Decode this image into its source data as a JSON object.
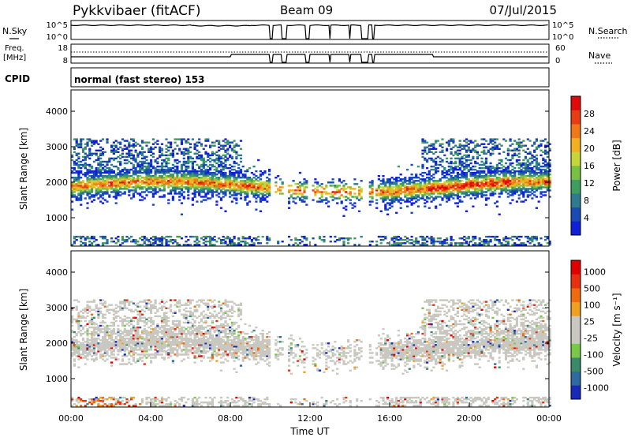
{
  "header": {
    "station": "Pykkvibaer (fitACF)",
    "beam": "Beam 09",
    "date": "07/Jul/2015"
  },
  "noise_panel": {
    "left_label": "N.Sky",
    "right_label": "N.Search",
    "left_ticks": [
      "10^5",
      "10^0"
    ],
    "right_ticks": [
      "10^5",
      "10^0"
    ]
  },
  "freq_panel": {
    "left_label": "Freq.",
    "left_unit": "[MHz]",
    "right_label": "Nave",
    "left_ticks": [
      "18",
      "8"
    ],
    "right_ticks": [
      "60",
      "0"
    ]
  },
  "cpid": {
    "label": "CPID",
    "mode": "normal (fast stereo) 153"
  },
  "chart_data": [
    {
      "type": "heatmap",
      "name": "power",
      "ylabel": "Slant Range [km]",
      "yticks": [
        "1000",
        "2000",
        "3000",
        "4000"
      ],
      "ylim": [
        200,
        4600
      ],
      "xlim": [
        0,
        24
      ],
      "colorbar": {
        "label": "Power [dB]",
        "ticks": [
          "4",
          "8",
          "12",
          "16",
          "20",
          "24",
          "28"
        ],
        "colors": [
          "#1020d8",
          "#1a4ab4",
          "#2d7b8c",
          "#3e9e5e",
          "#78c043",
          "#c4d63a",
          "#f0b020",
          "#f07818",
          "#e83c14",
          "#e00a0a"
        ]
      }
    },
    {
      "type": "heatmap",
      "name": "velocity",
      "ylabel": "Slant Range [km]",
      "yticks": [
        "1000",
        "2000",
        "3000",
        "4000"
      ],
      "ylim": [
        200,
        4600
      ],
      "xlim": [
        0,
        24
      ],
      "xlabel": "Time UT",
      "xticks": [
        "00:00",
        "04:00",
        "08:00",
        "12:00",
        "16:00",
        "20:00",
        "00:00"
      ],
      "colorbar": {
        "label": "Velocity [m s⁻¹]",
        "ticks": [
          "1000",
          "500",
          "100",
          "25",
          "-25",
          "-100",
          "-500",
          "-1000"
        ],
        "colors": [
          "#1a2ab8",
          "#2d6aa0",
          "#3a8a6a",
          "#7ac84a",
          "#c8c8c0",
          "#c8c8c0",
          "#f0a020",
          "#f06a10",
          "#e83010",
          "#e00000"
        ]
      }
    }
  ]
}
